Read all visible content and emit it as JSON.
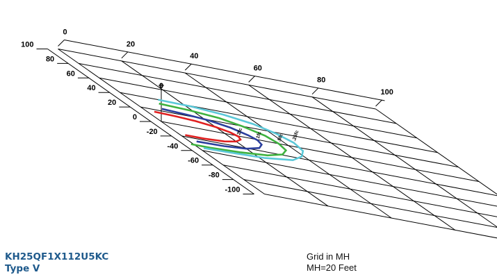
{
  "product": {
    "model": "KH25QF1X112U5KC",
    "type": "Type V"
  },
  "notes": {
    "grid": "Grid in MH",
    "mh": "MH=20 Feet"
  },
  "colors": {
    "contour_2fc": "#e02020",
    "contour_1fc": "#2b3f9e",
    "contour_05fc": "#3fb23f",
    "contour_025fc": "#5bc8d8",
    "model_text": "#1f5a8c"
  },
  "chart_data": {
    "type": "isofootcandle",
    "x_axis": {
      "ticks": [
        "0",
        "20",
        "40",
        "60",
        "80",
        "100"
      ],
      "range": [
        0,
        100
      ]
    },
    "y_axis": {
      "ticks": [
        "100",
        "80",
        "60",
        "40",
        "20",
        "0",
        "-20",
        "-40",
        "-60",
        "-80",
        "-100"
      ],
      "range": [
        -100,
        100
      ]
    },
    "z_axis": {
      "ticks": [
        "0"
      ]
    },
    "grid_divisions": {
      "x": 5,
      "y": 10
    },
    "contours": [
      {
        "label": "2fc",
        "color": "#e02020",
        "points": [
          [
            3,
            16
          ],
          [
            9,
            15
          ],
          [
            15,
            13
          ],
          [
            20,
            9
          ],
          [
            23,
            4
          ],
          [
            24,
            -1
          ],
          [
            23,
            -6
          ],
          [
            20,
            -11
          ],
          [
            15,
            -15
          ],
          [
            8,
            -17
          ],
          [
            2,
            -17
          ]
        ]
      },
      {
        "label": "1fc",
        "color": "#2b3f9e",
        "points": [
          [
            8,
            24
          ],
          [
            15,
            22
          ],
          [
            21,
            19
          ],
          [
            26,
            13
          ],
          [
            29,
            5
          ],
          [
            30,
            -1
          ],
          [
            29,
            -8
          ],
          [
            26,
            -15
          ],
          [
            20,
            -21
          ],
          [
            12,
            -24
          ],
          [
            3,
            -25
          ]
        ]
      },
      {
        "label": ".5fc",
        "color": "#3fb23f",
        "points": [
          [
            10,
            33
          ],
          [
            19,
            31
          ],
          [
            27,
            27
          ],
          [
            32,
            20
          ],
          [
            36,
            10
          ],
          [
            37,
            0
          ],
          [
            36,
            -10
          ],
          [
            32,
            -19
          ],
          [
            25,
            -26
          ],
          [
            15,
            -30
          ],
          [
            5,
            -32
          ],
          [
            -1,
            -32
          ]
        ]
      },
      {
        "label": ".25fc",
        "color": "#5bc8d8",
        "points": [
          [
            12,
            40
          ],
          [
            22,
            39
          ],
          [
            31,
            35
          ],
          [
            38,
            28
          ],
          [
            42,
            18
          ],
          [
            44,
            7
          ],
          [
            43,
            -5
          ],
          [
            39,
            -16
          ],
          [
            33,
            -26
          ],
          [
            22,
            -32
          ],
          [
            10,
            -34
          ],
          [
            2,
            -35
          ]
        ]
      }
    ]
  }
}
